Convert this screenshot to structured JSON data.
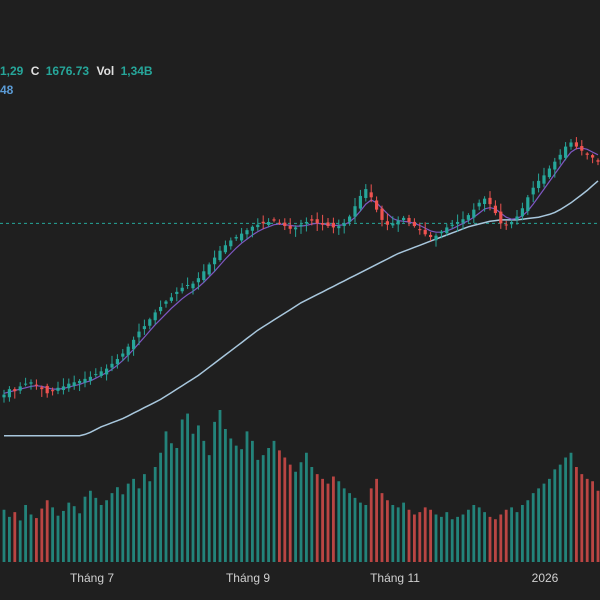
{
  "legend": {
    "close_partial": "1,29",
    "close_label": "C",
    "close_value": "1676.73",
    "vol_label": "Vol",
    "vol_value": "1,34B",
    "ma_partial": "48"
  },
  "colors": {
    "background": "#1f1f1f",
    "up": "#26a69a",
    "down": "#ef5350",
    "ma_short": "#7e57c2",
    "ma_long": "#a8c7dd",
    "ref_line": "#26a69a"
  },
  "chart_data": {
    "type": "candlestick",
    "xlabel": "",
    "ylabel": "",
    "x_ticks": [
      "Tháng 7",
      "Tháng 9",
      "Tháng 11",
      "2026"
    ],
    "grid": false,
    "reference_level": 1600,
    "ylim": [
      1240,
      1780
    ],
    "close_series": [
      1350,
      1358,
      1355,
      1362,
      1366,
      1368,
      1364,
      1358,
      1352,
      1355,
      1360,
      1362,
      1366,
      1368,
      1370,
      1373,
      1376,
      1380,
      1384,
      1388,
      1395,
      1402,
      1410,
      1420,
      1430,
      1442,
      1450,
      1460,
      1470,
      1478,
      1486,
      1492,
      1500,
      1506,
      1510,
      1512,
      1520,
      1530,
      1540,
      1550,
      1560,
      1568,
      1575,
      1580,
      1585,
      1590,
      1595,
      1598,
      1600,
      1602,
      1604,
      1600,
      1596,
      1592,
      1594,
      1598,
      1602,
      1604,
      1600,
      1598,
      1596,
      1594,
      1596,
      1600,
      1610,
      1625,
      1640,
      1650,
      1638,
      1620,
      1605,
      1598,
      1600,
      1604,
      1608,
      1602,
      1596,
      1590,
      1584,
      1580,
      1582,
      1588,
      1594,
      1598,
      1602,
      1606,
      1612,
      1620,
      1630,
      1636,
      1628,
      1615,
      1600,
      1598,
      1602,
      1610,
      1622,
      1638,
      1652,
      1662,
      1670,
      1680,
      1690,
      1700,
      1712,
      1718,
      1712,
      1706,
      1700,
      1696,
      1690
    ],
    "ma_short_series": [
      1352,
      1354,
      1356,
      1358,
      1360,
      1362,
      1363,
      1362,
      1360,
      1358,
      1358,
      1359,
      1361,
      1363,
      1365,
      1368,
      1370,
      1374,
      1378,
      1382,
      1387,
      1393,
      1400,
      1408,
      1416,
      1425,
      1434,
      1443,
      1452,
      1460,
      1468,
      1476,
      1483,
      1490,
      1496,
      1501,
      1507,
      1514,
      1522,
      1530,
      1539,
      1548,
      1556,
      1564,
      1571,
      1577,
      1583,
      1588,
      1592,
      1595,
      1598,
      1599,
      1598,
      1597,
      1596,
      1596,
      1597,
      1599,
      1600,
      1599,
      1598,
      1597,
      1597,
      1598,
      1602,
      1609,
      1618,
      1628,
      1634,
      1630,
      1622,
      1614,
      1607,
      1604,
      1603,
      1602,
      1600,
      1597,
      1593,
      1589,
      1587,
      1587,
      1589,
      1592,
      1596,
      1600,
      1604,
      1609,
      1615,
      1621,
      1623,
      1621,
      1615,
      1609,
      1606,
      1607,
      1611,
      1618,
      1628,
      1639,
      1650,
      1661,
      1672,
      1683,
      1694,
      1704,
      1709,
      1710,
      1708,
      1704,
      1700
    ],
    "ma_long_series": [
      1290,
      1290,
      1290,
      1290,
      1290,
      1290,
      1290,
      1290,
      1290,
      1290,
      1290,
      1290,
      1290,
      1290,
      1290,
      1292,
      1295,
      1299,
      1303,
      1306,
      1309,
      1312,
      1315,
      1319,
      1323,
      1327,
      1331,
      1335,
      1339,
      1343,
      1348,
      1353,
      1358,
      1363,
      1368,
      1373,
      1378,
      1384,
      1390,
      1396,
      1402,
      1408,
      1414,
      1420,
      1426,
      1432,
      1438,
      1444,
      1449,
      1454,
      1459,
      1464,
      1469,
      1474,
      1479,
      1484,
      1488,
      1492,
      1496,
      1500,
      1504,
      1508,
      1512,
      1516,
      1520,
      1524,
      1528,
      1532,
      1536,
      1540,
      1544,
      1548,
      1552,
      1556,
      1559,
      1562,
      1565,
      1568,
      1571,
      1574,
      1577,
      1580,
      1583,
      1586,
      1589,
      1592,
      1595,
      1597,
      1599,
      1601,
      1603,
      1604,
      1605,
      1605,
      1605,
      1605,
      1606,
      1607,
      1608,
      1609,
      1611,
      1613,
      1616,
      1620,
      1625,
      1630,
      1636,
      1642,
      1648,
      1655,
      1662
    ],
    "volume_series": [
      44,
      38,
      42,
      35,
      48,
      40,
      37,
      45,
      52,
      46,
      39,
      43,
      50,
      47,
      41,
      55,
      60,
      54,
      48,
      52,
      58,
      63,
      57,
      66,
      70,
      62,
      74,
      68,
      80,
      92,
      110,
      100,
      96,
      120,
      125,
      108,
      115,
      102,
      90,
      118,
      128,
      112,
      104,
      98,
      95,
      110,
      102,
      86,
      90,
      96,
      102,
      94,
      88,
      82,
      76,
      84,
      92,
      80,
      74,
      70,
      66,
      72,
      68,
      62,
      58,
      54,
      50,
      48,
      62,
      70,
      58,
      52,
      48,
      46,
      50,
      44,
      40,
      42,
      46,
      44,
      40,
      38,
      42,
      36,
      38,
      40,
      44,
      48,
      46,
      42,
      38,
      36,
      40,
      44,
      46,
      42,
      48,
      52,
      58,
      62,
      66,
      70,
      78,
      82,
      88,
      92,
      80,
      74,
      70,
      68,
      60
    ]
  }
}
